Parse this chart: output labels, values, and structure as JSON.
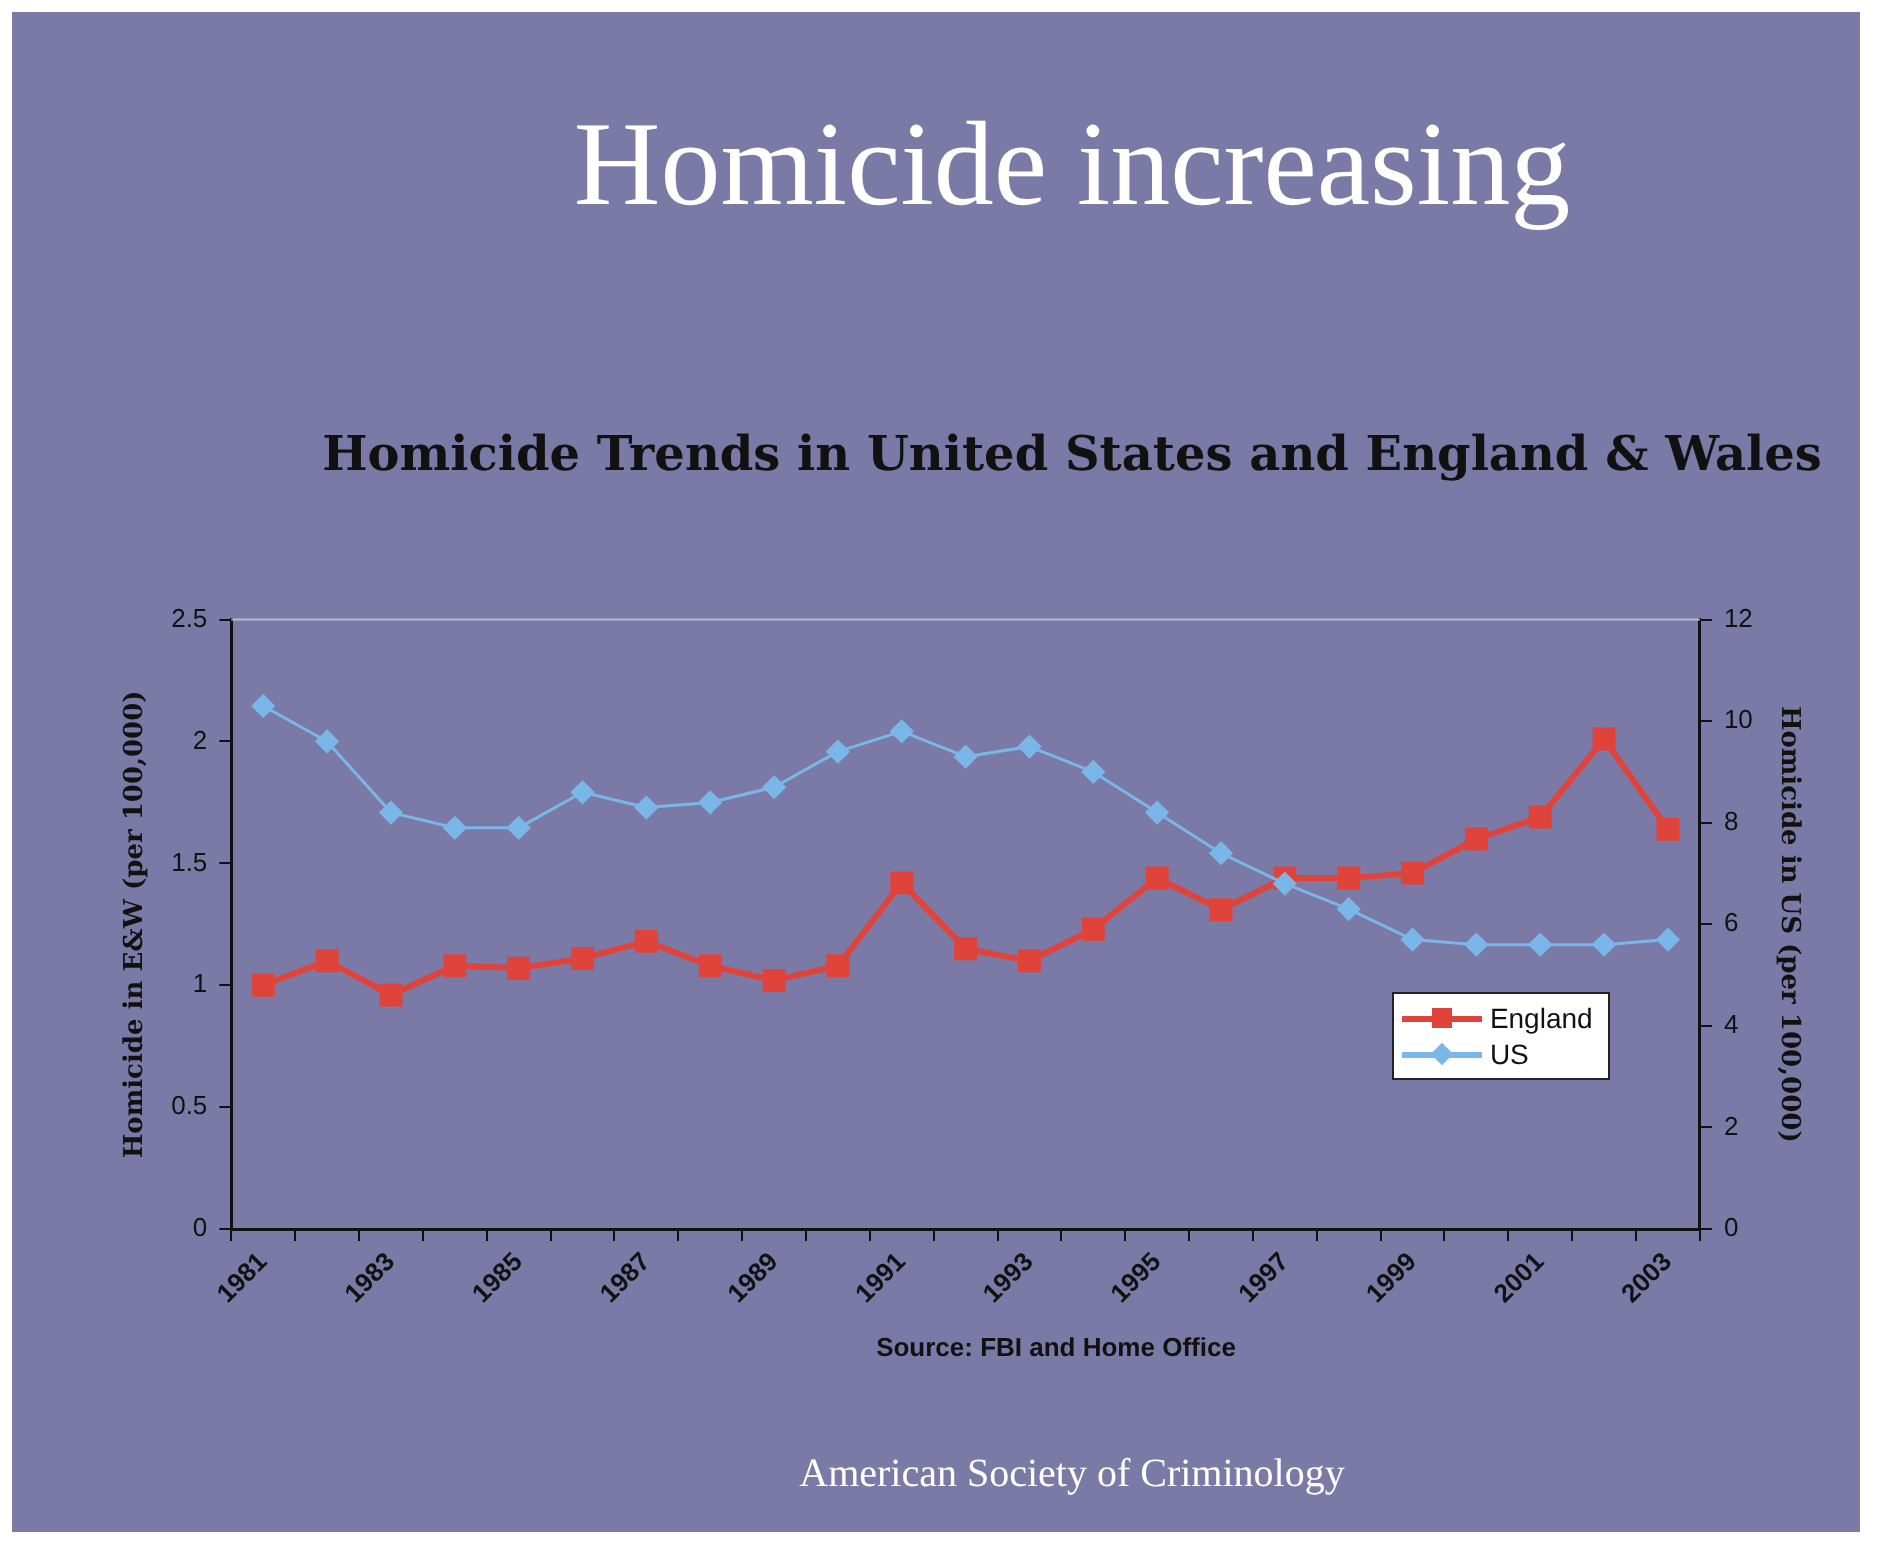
{
  "chart_data": {
    "type": "line",
    "title": "Homicide increasing",
    "subtitle": "Homicide Trends in United States and England & Wales",
    "categories": [
      "1981",
      null,
      "1983",
      null,
      "1985",
      null,
      "1987",
      null,
      "1989",
      null,
      "1991",
      null,
      "1993",
      null,
      "1995",
      null,
      "1997",
      null,
      "1999",
      null,
      "2001",
      null,
      "2003"
    ],
    "series": [
      {
        "name": "England",
        "color": "#e0433a",
        "marker": "square",
        "values": [
          1.0,
          1.1,
          0.96,
          1.08,
          1.07,
          1.11,
          1.18,
          1.08,
          1.02,
          1.08,
          1.42,
          1.15,
          1.1,
          1.23,
          1.44,
          1.31,
          1.44,
          1.44,
          1.46,
          1.6,
          1.69,
          2.01,
          1.64
        ]
      },
      {
        "name": "US",
        "color": "#7ab6e8",
        "marker": "diamond",
        "axis": "y2",
        "values": [
          10.3,
          9.6,
          8.2,
          7.9,
          7.9,
          8.6,
          8.3,
          8.4,
          8.7,
          9.4,
          9.8,
          9.3,
          9.5,
          9.0,
          8.2,
          7.4,
          6.8,
          6.3,
          5.7,
          5.6,
          5.6,
          5.6,
          5.7
        ]
      }
    ],
    "ylabel": "Homicide in E&W (per 100,000)",
    "y2label": "Homicide in US (per 100,000)",
    "ylim": [
      0,
      2.5
    ],
    "yticks": [
      0,
      0.5,
      1,
      1.5,
      2,
      2.5
    ],
    "y2lim": [
      0,
      12
    ],
    "y2ticks": [
      0,
      2,
      4,
      6,
      8,
      10,
      12
    ],
    "legend": "bottom right",
    "grid": false,
    "annotations": [
      "Source: FBI and Home Office",
      "American Society of Criminology"
    ]
  }
}
